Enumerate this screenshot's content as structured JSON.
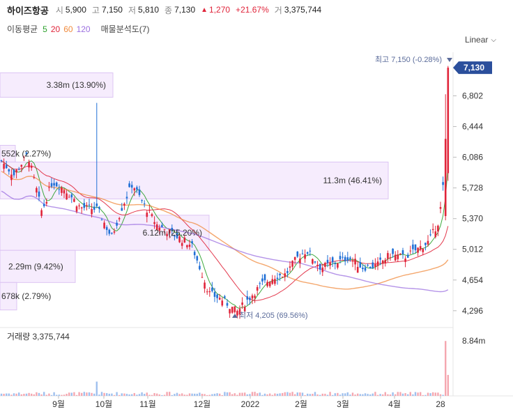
{
  "header": {
    "stock_name": "하이즈항공",
    "open_label": "시",
    "open": "5,900",
    "high_label": "고",
    "high": "7,150",
    "low_label": "저",
    "low": "5,810",
    "close_label": "종",
    "close": "7,130",
    "change": "1,270",
    "change_pct": "+21.67%",
    "volume_label": "거",
    "volume": "3,375,744",
    "up_color": "#e0243a",
    "down_color": "#1f6fd6"
  },
  "ma_legend": {
    "label": "이동평균",
    "periods": [
      {
        "text": "5",
        "color": "#2aa02a"
      },
      {
        "text": "20",
        "color": "#e0243a"
      },
      {
        "text": "60",
        "color": "#f08a3c"
      },
      {
        "text": "120",
        "color": "#9b6fe0"
      }
    ],
    "sales_analysis": "매물분석도(7)"
  },
  "scale_selector": "Linear",
  "chart_data": {
    "type": "candlestick",
    "x_ticks": [
      "9월",
      "10월",
      "11월",
      "12월",
      "2022",
      "2월",
      "3월",
      "4월",
      "28"
    ],
    "y_ticks": [
      "6,802",
      "6,444",
      "6,086",
      "5,728",
      "5,370",
      "5,012",
      "4,654",
      "4,296"
    ],
    "y_tick_values": [
      6802,
      6444,
      6086,
      5728,
      5370,
      5012,
      4654,
      4296
    ],
    "ylim": [
      4140,
      7310
    ],
    "last_price": "7,130",
    "last_price_value": 7130,
    "max_annotation": {
      "label": "최고",
      "value": "7,150",
      "pct": "(-0.28%)"
    },
    "min_annotation": {
      "label": "최저",
      "value": "4,205",
      "pct": "(69.56%)"
    },
    "volume_profile": [
      {
        "price_low": 6785,
        "price_high": 7070,
        "volume": "3.38m",
        "pct": "(13.90%)"
      },
      {
        "price_low": 6030,
        "price_high": 6225,
        "volume": "552k",
        "pct": "(2.27%)"
      },
      {
        "price_low": 5600,
        "price_high": 6030,
        "volume": "11.3m",
        "pct": "(46.41%)"
      },
      {
        "price_low": 5000,
        "price_high": 5410,
        "volume": "6.12m",
        "pct": "(25.20%)"
      },
      {
        "price_low": 4625,
        "price_high": 5000,
        "volume": "2.29m",
        "pct": "(9.42%)"
      },
      {
        "price_low": 4305,
        "price_high": 4625,
        "volume": "678k",
        "pct": "(2.79%)"
      }
    ],
    "volume_panel": {
      "label": "거래량",
      "value": "3,375,744",
      "y_tick": "8.84m",
      "y_tick_value": 8840000,
      "ylim": [
        0,
        11000000
      ]
    }
  }
}
